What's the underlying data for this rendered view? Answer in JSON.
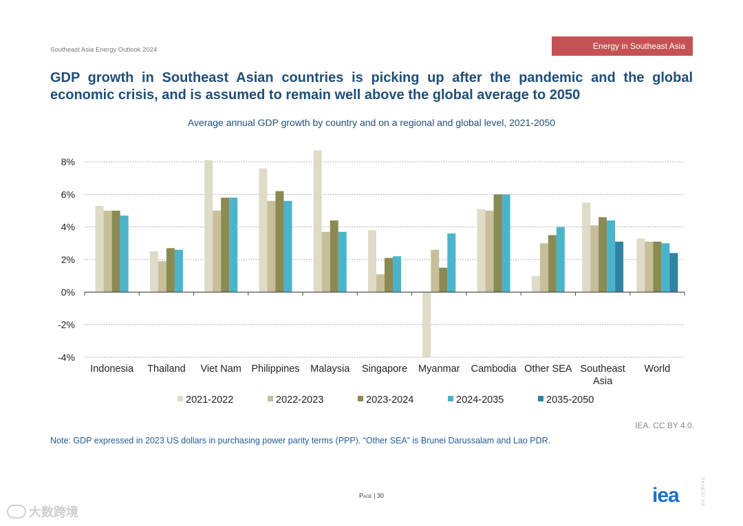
{
  "header": {
    "report_label": "Southeast Asia Energy Outlook 2024",
    "section_tag": "Energy in Southeast Asia"
  },
  "headline": "GDP growth in Southeast Asian countries is picking up after the pandemic and the global economic crisis, and is assumed to remain well above the global average to 2050",
  "colors": {
    "2021-2022": "#dedbc9",
    "2022-2023": "#c6bf9a",
    "2023-2024": "#8a8a52",
    "2024-2035": "#4bb4cb",
    "2035-2050": "#2f84a1",
    "title": "#1f4e79",
    "tag": "#c45254"
  },
  "chart_data": {
    "type": "bar",
    "title": "Average annual GDP growth by country and on a regional and global level, 2021-2050",
    "categories": [
      "Indonesia",
      "Thailand",
      "Viet Nam",
      "Philippines",
      "Malaysia",
      "Singapore",
      "Myanmar",
      "Cambodia",
      "Other SEA",
      "Southeast Asia",
      "World"
    ],
    "category_lines": [
      [
        "Indonesia"
      ],
      [
        "Thailand"
      ],
      [
        "Viet Nam"
      ],
      [
        "Philippines"
      ],
      [
        "Malaysia"
      ],
      [
        "Singapore"
      ],
      [
        "Myanmar"
      ],
      [
        "Cambodia"
      ],
      [
        "Other SEA"
      ],
      [
        "Southeast",
        "Asia"
      ],
      [
        "World"
      ]
    ],
    "series": [
      {
        "name": "2021-2022",
        "values": [
          5.3,
          2.5,
          8.1,
          7.6,
          8.7,
          3.8,
          -4.0,
          5.1,
          1.0,
          5.5,
          3.3
        ]
      },
      {
        "name": "2022-2023",
        "values": [
          5.0,
          1.9,
          5.0,
          5.6,
          3.7,
          1.1,
          2.6,
          5.0,
          3.0,
          4.1,
          3.1
        ]
      },
      {
        "name": "2023-2024",
        "values": [
          5.0,
          2.7,
          5.8,
          6.2,
          4.4,
          2.1,
          1.5,
          6.0,
          3.5,
          4.6,
          3.1
        ]
      },
      {
        "name": "2024-2035",
        "values": [
          4.7,
          2.6,
          5.8,
          5.6,
          3.7,
          2.2,
          3.6,
          6.0,
          4.0,
          4.4,
          3.0
        ]
      },
      {
        "name": "2035-2050",
        "values": [
          null,
          null,
          null,
          null,
          null,
          null,
          null,
          null,
          null,
          3.1,
          2.4
        ]
      }
    ],
    "ylim": [
      -4,
      8
    ],
    "yticks": [
      8,
      6,
      4,
      2,
      0,
      -2,
      -4
    ],
    "ytick_labels": [
      "8%",
      "6%",
      "4%",
      "2%",
      "0%",
      "-2%",
      "-4%"
    ],
    "legend_position": "bottom",
    "grid": true
  },
  "credit": "IEA. CC BY 4.0.",
  "note": "Note: GDP expressed in 2023 US dollars in purchasing power parity terms (PPP). “Other SEA” is Brunei Darussalam and Lao PDR.",
  "footer": {
    "page_word": "Page",
    "page_number": "| 30",
    "logo_text": "iea",
    "side_text": "IEA. CC BY 4.0.",
    "watermark": "大数跨境"
  }
}
